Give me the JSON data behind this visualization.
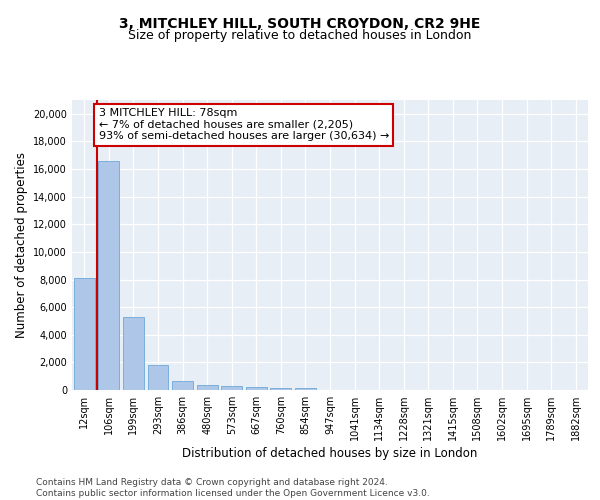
{
  "title_line1": "3, MITCHLEY HILL, SOUTH CROYDON, CR2 9HE",
  "title_line2": "Size of property relative to detached houses in London",
  "xlabel": "Distribution of detached houses by size in London",
  "ylabel": "Number of detached properties",
  "categories": [
    "12sqm",
    "106sqm",
    "199sqm",
    "293sqm",
    "386sqm",
    "480sqm",
    "573sqm",
    "667sqm",
    "760sqm",
    "854sqm",
    "947sqm",
    "1041sqm",
    "1134sqm",
    "1228sqm",
    "1321sqm",
    "1415sqm",
    "1508sqm",
    "1602sqm",
    "1695sqm",
    "1789sqm",
    "1882sqm"
  ],
  "values": [
    8100,
    16600,
    5300,
    1800,
    650,
    380,
    270,
    220,
    180,
    160,
    0,
    0,
    0,
    0,
    0,
    0,
    0,
    0,
    0,
    0,
    0
  ],
  "bar_color": "#aec6e8",
  "bar_edge_color": "#5a9fd4",
  "annotation_text_line1": "3 MITCHLEY HILL: 78sqm",
  "annotation_text_line2": "← 7% of detached houses are smaller (2,205)",
  "annotation_text_line3": "93% of semi-detached houses are larger (30,634) →",
  "vline_color": "#cc0000",
  "annotation_box_color": "#ffffff",
  "annotation_box_edge_color": "#cc0000",
  "ylim": [
    0,
    21000
  ],
  "yticks": [
    0,
    2000,
    4000,
    6000,
    8000,
    10000,
    12000,
    14000,
    16000,
    18000,
    20000
  ],
  "background_color": "#e8eef5",
  "footer_text": "Contains HM Land Registry data © Crown copyright and database right 2024.\nContains public sector information licensed under the Open Government Licence v3.0.",
  "title_fontsize": 10,
  "subtitle_fontsize": 9,
  "axis_label_fontsize": 8.5,
  "tick_fontsize": 7,
  "annotation_fontsize": 8,
  "footer_fontsize": 6.5
}
